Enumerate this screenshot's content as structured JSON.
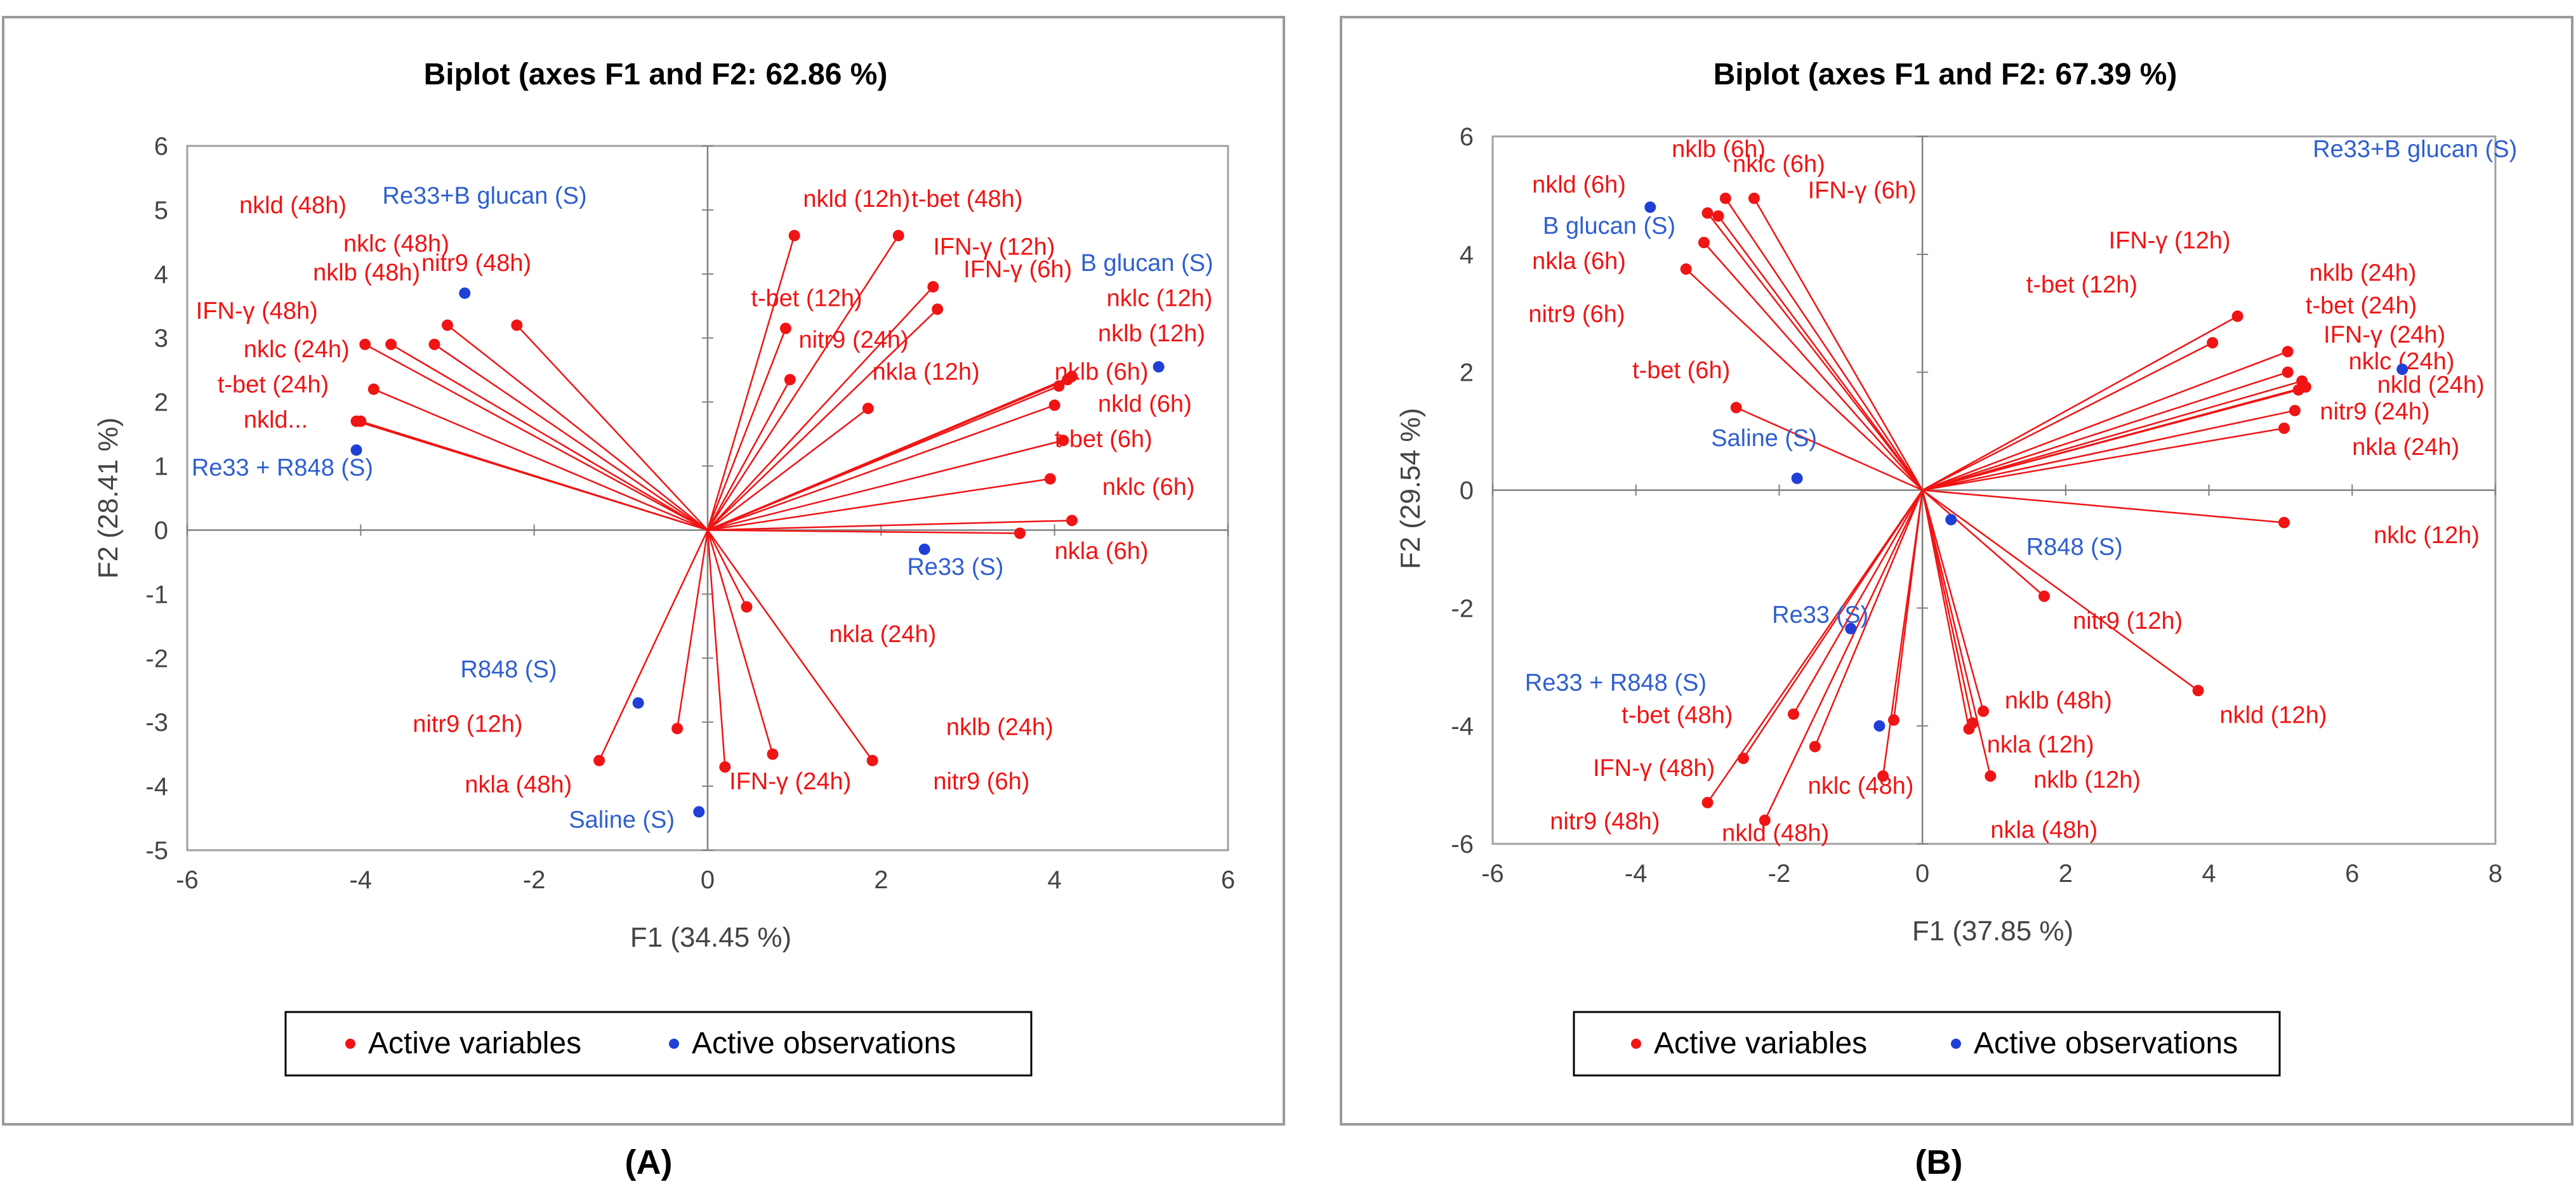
{
  "panels": [
    {
      "panel_label": "(A)",
      "legend": {
        "variables_label": "Active variables",
        "observations_label": "Active observations"
      },
      "colors": {
        "variables": "#f01414",
        "observations": "#1f3fd6",
        "vector": "#f01414",
        "obs_label": "#2f5fd0"
      }
    },
    {
      "panel_label": "(B)",
      "legend": {
        "variables_label": "Active variables",
        "observations_label": "Active observations"
      },
      "colors": {
        "variables": "#f01414",
        "observations": "#1f3fd6",
        "vector": "#f01414",
        "obs_label": "#2f5fd0"
      }
    }
  ],
  "chart_data": [
    {
      "type": "scatter",
      "title": "Biplot (axes F1 and F2: 62.86 %)",
      "xlabel": "F1 (34.45 %)",
      "ylabel": "F2 (28.41 %)",
      "xlim": [
        -6,
        6
      ],
      "ylim": [
        -5,
        6
      ],
      "xticks": [
        -6,
        -4,
        -2,
        0,
        2,
        4,
        6
      ],
      "yticks": [
        -5,
        -4,
        -3,
        -2,
        -1,
        0,
        1,
        2,
        3,
        4,
        5,
        6
      ],
      "variables": [
        {
          "label": "nkld (48h)",
          "x": -3.0,
          "y": 3.2,
          "lx": -5.4,
          "ly": 4.95
        },
        {
          "label": "nklc (48h)",
          "x": -3.15,
          "y": 2.9,
          "lx": -4.2,
          "ly": 4.35
        },
        {
          "label": "nklb (48h)",
          "x": -3.65,
          "y": 2.9,
          "lx": -4.55,
          "ly": 3.9
        },
        {
          "label": "nitr9 (48h)",
          "x": -2.2,
          "y": 3.2,
          "lx": -3.3,
          "ly": 4.05
        },
        {
          "label": "IFN-γ (48h)",
          "x": -3.95,
          "y": 2.9,
          "lx": -5.9,
          "ly": 3.3
        },
        {
          "label": "nklc (24h)",
          "x": -3.85,
          "y": 2.2,
          "lx": -5.35,
          "ly": 2.7
        },
        {
          "label": "t-bet (24h)",
          "x": -4.0,
          "y": 1.7,
          "lx": -5.65,
          "ly": 2.15
        },
        {
          "label": "nkld...",
          "x": -4.05,
          "y": 1.7,
          "lx": -5.35,
          "ly": 1.6
        },
        {
          "label": "nkld (12h)",
          "x": 1.0,
          "y": 4.6,
          "lx": 1.1,
          "ly": 5.05
        },
        {
          "label": "t-bet (48h)",
          "x": 2.2,
          "y": 4.6,
          "lx": 2.35,
          "ly": 5.05
        },
        {
          "label": "IFN-γ (12h)",
          "x": 2.6,
          "y": 3.8,
          "lx": 2.6,
          "ly": 4.3
        },
        {
          "label": "IFN-γ (6h)",
          "x": 2.65,
          "y": 3.45,
          "lx": 2.95,
          "ly": 3.95
        },
        {
          "label": "t-bet (12h)",
          "x": 0.9,
          "y": 3.15,
          "lx": 0.5,
          "ly": 3.5
        },
        {
          "label": "nitr9 (24h)",
          "x": 0.95,
          "y": 2.35,
          "lx": 1.05,
          "ly": 2.85
        },
        {
          "label": "nkla (12h)",
          "x": 1.85,
          "y": 1.9,
          "lx": 1.9,
          "ly": 2.35
        },
        {
          "label": "nklc (12h)",
          "x": 4.15,
          "y": 2.35,
          "lx": 4.6,
          "ly": 3.5
        },
        {
          "label": "nklb (12h)",
          "x": 4.2,
          "y": 2.4,
          "lx": 4.5,
          "ly": 2.95
        },
        {
          "label": "nklb (6h)",
          "x": 4.05,
          "y": 2.25,
          "lx": 4.0,
          "ly": 2.35
        },
        {
          "label": "nkld (6h)",
          "x": 4.0,
          "y": 1.95,
          "lx": 4.5,
          "ly": 1.85
        },
        {
          "label": "t-bet (6h)",
          "x": 4.1,
          "y": 1.4,
          "lx": 4.0,
          "ly": 1.3
        },
        {
          "label": "nklc (6h)",
          "x": 3.95,
          "y": 0.8,
          "lx": 4.55,
          "ly": 0.55
        },
        {
          "label": "nkla (6h)",
          "x": 4.2,
          "y": 0.15,
          "lx": 4.0,
          "ly": -0.45
        },
        {
          "label": "",
          "x": 3.6,
          "y": -0.05
        },
        {
          "label": "nkla (24h)",
          "x": 0.45,
          "y": -1.2,
          "lx": 1.4,
          "ly": -1.75
        },
        {
          "label": "nklb (24h)",
          "x": 1.9,
          "y": -3.6,
          "lx": 2.75,
          "ly": -3.2
        },
        {
          "label": "nitr9 (6h)",
          "x": 0.75,
          "y": -3.5,
          "lx": 2.6,
          "ly": -4.05
        },
        {
          "label": "IFN-γ (24h)",
          "x": 0.2,
          "y": -3.7,
          "lx": 0.25,
          "ly": -4.05
        },
        {
          "label": "nitr9 (12h)",
          "x": -0.35,
          "y": -3.1,
          "lx": -3.4,
          "ly": -3.15
        },
        {
          "label": "nkla (48h)",
          "x": -1.25,
          "y": -3.6,
          "lx": -2.8,
          "ly": -4.1
        }
      ],
      "observations": [
        {
          "label": "Re33+B glucan (S)",
          "x": -2.8,
          "y": 3.7,
          "lx": -3.75,
          "ly": 5.1
        },
        {
          "label": "B glucan  (S)",
          "x": 5.2,
          "y": 2.55,
          "lx": 4.3,
          "ly": 4.05
        },
        {
          "label": "Re33 + R848  (S)",
          "x": -4.05,
          "y": 1.25,
          "lx": -5.95,
          "ly": 0.85
        },
        {
          "label": "Re33  (S)",
          "x": 2.5,
          "y": -0.3,
          "lx": 2.3,
          "ly": -0.7
        },
        {
          "label": "R848  (S)",
          "x": -0.8,
          "y": -2.7,
          "lx": -2.85,
          "ly": -2.3
        },
        {
          "label": "Saline (S)",
          "x": -0.1,
          "y": -4.4,
          "lx": -1.6,
          "ly": -4.65
        }
      ]
    },
    {
      "type": "scatter",
      "title": "Biplot (axes F1 and F2: 67.39 %)",
      "xlabel": "F1 (37.85 %)",
      "ylabel": "F2 (29.54 %)",
      "xlim": [
        -6,
        8
      ],
      "ylim": [
        -6,
        6
      ],
      "xticks": [
        -6,
        -4,
        -2,
        0,
        2,
        4,
        6,
        8
      ],
      "yticks": [
        -6,
        -4,
        -2,
        0,
        2,
        4,
        6
      ],
      "variables": [
        {
          "label": "nklb (6h)",
          "x": -2.75,
          "y": 4.95,
          "lx": -3.5,
          "ly": 5.65
        },
        {
          "label": "nkld (6h)",
          "x": -3.0,
          "y": 4.7,
          "lx": -5.45,
          "ly": 5.05
        },
        {
          "label": "nklc (6h)",
          "x": -2.35,
          "y": 4.95,
          "lx": -2.65,
          "ly": 5.4
        },
        {
          "label": "IFN-γ (6h)",
          "x": -2.85,
          "y": 4.65,
          "lx": -1.6,
          "ly": 4.95
        },
        {
          "label": "nkla (6h)",
          "x": -3.05,
          "y": 4.2,
          "lx": -5.45,
          "ly": 3.75
        },
        {
          "label": "nitr9 (6h)",
          "x": -3.3,
          "y": 3.75,
          "lx": -5.5,
          "ly": 2.85
        },
        {
          "label": "t-bet (6h)",
          "x": -2.6,
          "y": 1.4,
          "lx": -4.05,
          "ly": 1.9
        },
        {
          "label": "IFN-γ (12h)",
          "x": 4.4,
          "y": 2.95,
          "lx": 2.6,
          "ly": 4.1
        },
        {
          "label": "t-bet (12h)",
          "x": 4.05,
          "y": 2.5,
          "lx": 1.45,
          "ly": 3.35
        },
        {
          "label": "nklb (24h)",
          "x": 5.1,
          "y": 2.35,
          "lx": 5.4,
          "ly": 3.55
        },
        {
          "label": "t-bet (24h)",
          "x": 5.1,
          "y": 2.0,
          "lx": 5.35,
          "ly": 3.0
        },
        {
          "label": "IFN-γ (24h)",
          "x": 5.3,
          "y": 1.85,
          "lx": 5.6,
          "ly": 2.5
        },
        {
          "label": "nklc (24h)",
          "x": 5.35,
          "y": 1.75,
          "lx": 5.95,
          "ly": 2.05
        },
        {
          "label": "nkld (24h)",
          "x": 5.25,
          "y": 1.7,
          "lx": 6.35,
          "ly": 1.65
        },
        {
          "label": "nitr9 (24h)",
          "x": 5.2,
          "y": 1.35,
          "lx": 5.55,
          "ly": 1.2
        },
        {
          "label": "nkla (24h)",
          "x": 5.05,
          "y": 1.05,
          "lx": 6.0,
          "ly": 0.6
        },
        {
          "label": "nklc (12h)",
          "x": 5.05,
          "y": -0.55,
          "lx": 6.3,
          "ly": -0.9
        },
        {
          "label": "nitr9 (12h)",
          "x": 1.7,
          "y": -1.8,
          "lx": 2.1,
          "ly": -2.35
        },
        {
          "label": "nkld (12h)",
          "x": 3.85,
          "y": -3.4,
          "lx": 4.15,
          "ly": -3.95
        },
        {
          "label": "nklb (48h)",
          "x": 0.85,
          "y": -3.75,
          "lx": 1.15,
          "ly": -3.7
        },
        {
          "label": "nkla (12h)",
          "x": 0.7,
          "y": -3.95,
          "lx": 0.9,
          "ly": -4.45
        },
        {
          "label": "nklb (12h)",
          "x": 0.65,
          "y": -4.05,
          "lx": 1.55,
          "ly": -5.05
        },
        {
          "label": "nkla (48h)",
          "x": 0.95,
          "y": -4.85,
          "lx": 0.95,
          "ly": -5.9
        },
        {
          "label": "",
          "x": -0.55,
          "y": -4.85
        },
        {
          "label": "",
          "x": -0.4,
          "y": -3.9
        },
        {
          "label": "nklc (48h)",
          "x": -1.5,
          "y": -4.35,
          "lx": -1.6,
          "ly": -5.15
        },
        {
          "label": "t-bet (48h)",
          "x": -1.8,
          "y": -3.8,
          "lx": -4.2,
          "ly": -3.95
        },
        {
          "label": "IFN-γ (48h)",
          "x": -2.5,
          "y": -4.55,
          "lx": -4.6,
          "ly": -4.85
        },
        {
          "label": "nitr9 (48h)",
          "x": -3.0,
          "y": -5.3,
          "lx": -5.2,
          "ly": -5.75
        },
        {
          "label": "nkld (48h)",
          "x": -2.2,
          "y": -5.6,
          "lx": -2.8,
          "ly": -5.95
        }
      ],
      "observations": [
        {
          "label": "Re33+B glucan (S)",
          "x": 6.7,
          "y": 2.05,
          "lx": 5.45,
          "ly": 5.65
        },
        {
          "label": "B glucan  (S)",
          "x": -3.8,
          "y": 4.8,
          "lx": -5.3,
          "ly": 4.35
        },
        {
          "label": "Saline (S)",
          "x": -1.75,
          "y": 0.2,
          "lx": -2.95,
          "ly": 0.75
        },
        {
          "label": "R848  (S)",
          "x": 0.4,
          "y": -0.5,
          "lx": 1.45,
          "ly": -1.1
        },
        {
          "label": "Re33  (S)",
          "x": -1.0,
          "y": -2.35,
          "lx": -2.1,
          "ly": -2.25
        },
        {
          "label": "Re33 + R848  (S)",
          "x": -0.6,
          "y": -4.0,
          "lx": -5.55,
          "ly": -3.4
        }
      ]
    }
  ]
}
